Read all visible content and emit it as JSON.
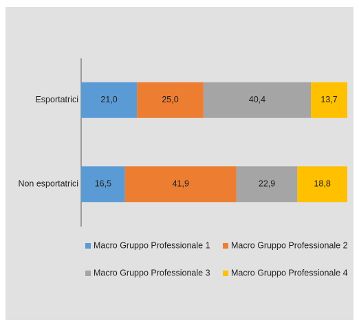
{
  "chart_data": {
    "type": "bar",
    "orientation": "horizontal",
    "stacked": true,
    "categories": [
      "Esportatrici",
      "Non esportatrici"
    ],
    "series": [
      {
        "name": "Macro Gruppo Professionale 1",
        "color": "#5b9bd5",
        "values": [
          21.0,
          16.5
        ],
        "value_labels": [
          "21,0",
          "16,5"
        ]
      },
      {
        "name": "Macro Gruppo Professionale 2",
        "color": "#ed7d31",
        "values": [
          25.0,
          41.9
        ],
        "value_labels": [
          "25,0",
          "41,9"
        ]
      },
      {
        "name": "Macro Gruppo Professionale 3",
        "color": "#a5a5a5",
        "values": [
          40.4,
          22.9
        ],
        "value_labels": [
          "40,4",
          "22,9"
        ]
      },
      {
        "name": "Macro Gruppo Professionale 4",
        "color": "#ffc000",
        "values": [
          13.7,
          18.8
        ],
        "value_labels": [
          "13,7",
          "18,8"
        ]
      }
    ]
  }
}
